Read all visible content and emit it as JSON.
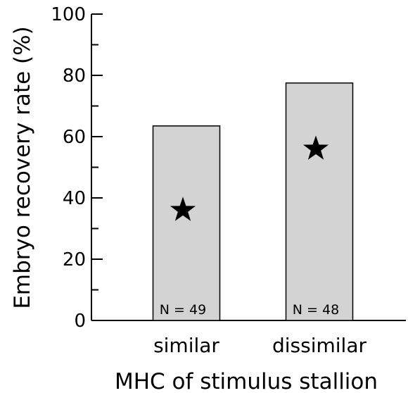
{
  "chart_data": {
    "type": "bar",
    "title": "",
    "xlabel": "MHC of stimulus stallion",
    "ylabel": "Embryo recovery rate (%)",
    "categories": [
      "similar",
      "dissimilar"
    ],
    "values": [
      63.5,
      77.5
    ],
    "sample_sizes": [
      "N = 49",
      "N = 48"
    ],
    "star_values": [
      36,
      56
    ],
    "ylim": [
      0,
      100
    ],
    "yticks_major": [
      0,
      20,
      40,
      60,
      80,
      100
    ],
    "yticks_major_labels": [
      "0",
      "20",
      "40",
      "60",
      "80",
      "100"
    ],
    "yticks_minor": [
      10,
      30,
      50,
      70,
      90
    ],
    "grid": false,
    "legend": "none",
    "bar_color": "#d3d3d3",
    "bar_edge_color": "#000000"
  }
}
